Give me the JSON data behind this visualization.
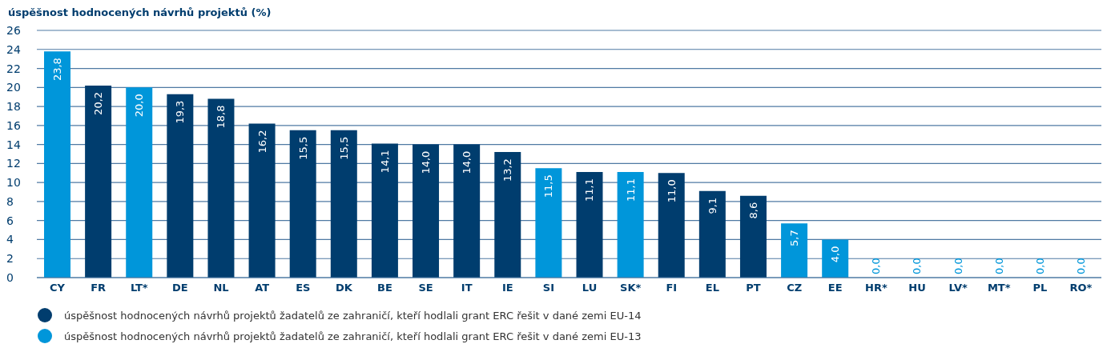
{
  "chart_data": {
    "type": "bar",
    "ylabel": "úspěšnost hodnocených návrhů projektů (%)",
    "categories": [
      "CY",
      "FR",
      "LT*",
      "DE",
      "NL",
      "AT",
      "ES",
      "DK",
      "BE",
      "SE",
      "IT",
      "IE",
      "SI",
      "LU",
      "SK*",
      "FI",
      "EL",
      "PT",
      "CZ",
      "EE",
      "HR*",
      "HU",
      "LV*",
      "MT*",
      "PL",
      "RO*"
    ],
    "stacked": true,
    "series": [
      {
        "name": "úspěšnost hodnocených návrhů projektů žadatelů ze zahraničí, kteří hodlali grant ERC řešit v dané zemi EU-14",
        "color": "#003d6e",
        "values": [
          null,
          20.2,
          null,
          19.3,
          18.8,
          16.2,
          15.5,
          15.5,
          14.1,
          14.0,
          14.0,
          13.2,
          null,
          11.1,
          null,
          11.0,
          9.1,
          8.6,
          null,
          null,
          null,
          null,
          null,
          null,
          null,
          null
        ],
        "value_labels": [
          null,
          "20,2",
          null,
          "19,3",
          "18,8",
          "16,2",
          "15,5",
          "15,5",
          "14,1",
          "14,0",
          "14,0",
          "13,2",
          null,
          "11,1",
          null,
          "11,0",
          "9,1",
          "8,6",
          null,
          null,
          null,
          null,
          null,
          null,
          null,
          null
        ]
      },
      {
        "name": "úspěšnost hodnocených návrhů projektů žadatelů ze zahraničí, kteří hodlali grant ERC řešit v dané zemi EU-13",
        "color": "#0096da",
        "values": [
          23.8,
          null,
          20.0,
          null,
          null,
          null,
          null,
          null,
          null,
          null,
          null,
          null,
          11.5,
          null,
          11.1,
          null,
          null,
          null,
          5.7,
          4.0,
          0,
          0,
          0,
          0,
          0,
          0
        ],
        "value_labels": [
          "23,8",
          null,
          "20,0",
          null,
          null,
          null,
          null,
          null,
          null,
          null,
          null,
          null,
          "11,5",
          null,
          "11,1",
          null,
          null,
          null,
          "5,7",
          "4,0",
          "0,0",
          "0,0",
          "0,0",
          "0,0",
          "0,0",
          "0,0"
        ]
      }
    ],
    "ylim": [
      0,
      26
    ],
    "yticks": [
      0,
      2,
      4,
      6,
      8,
      10,
      12,
      14,
      16,
      18,
      20,
      22,
      24,
      26
    ],
    "grid": "y",
    "legend": "bottom"
  }
}
